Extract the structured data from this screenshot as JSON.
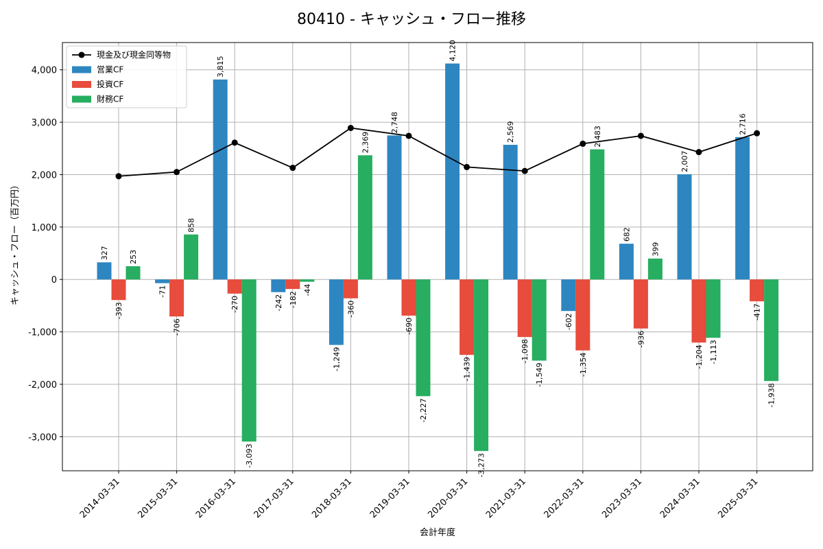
{
  "chart_data": {
    "type": "bar",
    "title": "80410 - キャッシュ・フロー推移",
    "xlabel": "会計年度",
    "ylabel": "キャッシュ・フロー（百万円）",
    "ylim": [
      -3650,
      4520
    ],
    "yticks": [
      -3000,
      -2000,
      -1000,
      0,
      1000,
      2000,
      3000,
      4000
    ],
    "ytick_labels": [
      "-3,000",
      "-2,000",
      "-1,000",
      "0",
      "1,000",
      "2,000",
      "3,000",
      "4,000"
    ],
    "grid": true,
    "legend_position": "top-left",
    "categories": [
      "2014-03-31",
      "2015-03-31",
      "2016-03-31",
      "2017-03-31",
      "2018-03-31",
      "2019-03-31",
      "2020-03-31",
      "2021-03-31",
      "2022-03-31",
      "2023-03-31",
      "2024-03-31",
      "2025-03-31"
    ],
    "series": [
      {
        "name": "営業CF",
        "kind": "bar",
        "color": "#2e86c1",
        "values": [
          327,
          -71,
          3815,
          -242,
          -1249,
          2748,
          4120,
          2569,
          -602,
          682,
          2007,
          2716
        ],
        "labels": [
          "327",
          "-71",
          "3,815",
          "-242",
          "-1,249",
          "2,748",
          "4,120",
          "2,569",
          "-602",
          "682",
          "2,007",
          "2,716"
        ]
      },
      {
        "name": "投資CF",
        "kind": "bar",
        "color": "#e74c3c",
        "values": [
          -393,
          -706,
          -270,
          -182,
          -360,
          -690,
          -1439,
          -1098,
          -1354,
          -936,
          -1204,
          -417
        ],
        "labels": [
          "-393",
          "-706",
          "-270",
          "-182",
          "-360",
          "-690",
          "-1,439",
          "-1,098",
          "-1,354",
          "-936",
          "-1,204",
          "-417"
        ]
      },
      {
        "name": "財務CF",
        "kind": "bar",
        "color": "#27ae60",
        "values": [
          253,
          858,
          -3093,
          -44,
          2369,
          -2227,
          -3273,
          -1549,
          2483,
          399,
          -1113,
          -1938
        ],
        "labels": [
          "253",
          "858",
          "-3,093",
          "-44",
          "2,369",
          "-2,227",
          "-3,273",
          "-1,549",
          "2,483",
          "399",
          "-1,113",
          "-1,938"
        ]
      },
      {
        "name": "現金及び現金同等物",
        "kind": "line",
        "color": "#000000",
        "values": [
          1970,
          2050,
          2610,
          2130,
          2890,
          2740,
          2145,
          2070,
          2590,
          2740,
          2430,
          2790
        ]
      }
    ]
  }
}
